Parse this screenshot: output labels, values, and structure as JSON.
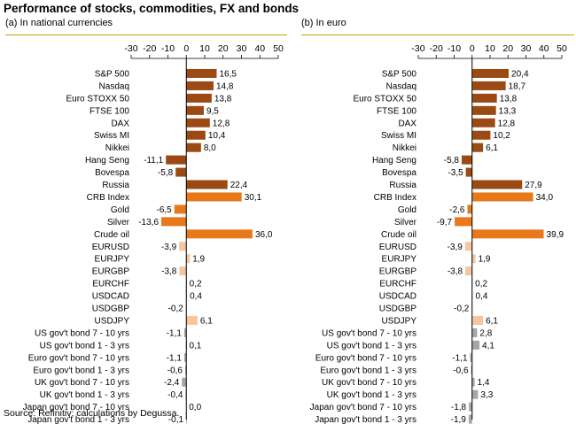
{
  "title": "Performance of stocks, commodities, FX and bonds",
  "source": "Source: Refinitiv; calculations by Degussa.",
  "colors": {
    "stocks": "#9a4a12",
    "commodities": "#e8791b",
    "fx": "#f5c6a0",
    "bonds": "#a6a6a6",
    "rule": "#c8a000",
    "axis": "#000000"
  },
  "chart_data": [
    {
      "type": "bar",
      "orientation": "horizontal",
      "title": "(a) In national currencies",
      "xlim": [
        -30,
        50
      ],
      "xticks": [
        "-30",
        "-20",
        "-10",
        "0",
        "10",
        "20",
        "30",
        "40",
        "50"
      ],
      "categories": [
        "S&P 500",
        "Nasdaq",
        "Euro STOXX 50",
        "FTSE 100",
        "DAX",
        "Swiss MI",
        "Nikkei",
        "Hang Seng",
        "Bovespa",
        "Russia",
        "CRB Index",
        "Gold",
        "Silver",
        "Crude oil",
        "EURUSD",
        "EURJPY",
        "EURGBP",
        "EURCHF",
        "USDCAD",
        "USDGBP",
        "USDJPY",
        "US gov't bond 7 - 10 yrs",
        "US gov't bond 1 - 3 yrs",
        "Euro gov't bond 7 - 10 yrs",
        "Euro gov't bond 1 - 3 yrs",
        "UK gov't bond 7 - 10 yrs",
        "UK gov't bond 1 - 3 yrs",
        "Japan gov't bond 7 - 10 yrs",
        "Japan gov't bond 1 - 3 yrs"
      ],
      "groups": [
        "stocks",
        "stocks",
        "stocks",
        "stocks",
        "stocks",
        "stocks",
        "stocks",
        "stocks",
        "stocks",
        "commodities_dark",
        "commodities",
        "commodities",
        "commodities",
        "commodities",
        "fx",
        "fx",
        "fx",
        "fx",
        "fx",
        "fx",
        "fx",
        "bonds",
        "bonds",
        "bonds",
        "bonds",
        "bonds",
        "bonds",
        "bonds",
        "bonds"
      ],
      "values": [
        16.5,
        14.8,
        13.8,
        9.5,
        12.8,
        10.4,
        8.0,
        -11.1,
        -5.8,
        22.4,
        30.1,
        -6.5,
        -13.6,
        36.0,
        -3.9,
        1.9,
        -3.8,
        0.2,
        0.4,
        -0.2,
        6.1,
        -1.1,
        0.1,
        -1.1,
        -0.6,
        -2.4,
        -0.4,
        0.0,
        -0.1
      ],
      "labels": [
        "16,5",
        "14,8",
        "13,8",
        "9,5",
        "12,8",
        "10,4",
        "8,0",
        "-11,1",
        "-5,8",
        "22,4",
        "30,1",
        "-6,5",
        "-13,6",
        "36,0",
        "-3,9",
        "1,9",
        "-3,8",
        "0,2",
        "0,4",
        "-0,2",
        "6,1",
        "-1,1",
        "0,1",
        "-1,1",
        "-0,6",
        "-2,4",
        "-0,4",
        "0,0",
        "-0,1"
      ]
    },
    {
      "type": "bar",
      "orientation": "horizontal",
      "title": "(b) In euro",
      "xlim": [
        -30,
        50
      ],
      "xticks": [
        "-30",
        "-20",
        "-10",
        "0",
        "10",
        "20",
        "30",
        "40",
        "50"
      ],
      "categories": [
        "S&P 500",
        "Nasdaq",
        "Euro STOXX 50",
        "FTSE 100",
        "DAX",
        "Swiss MI",
        "Nikkei",
        "Hang Seng",
        "Bovespa",
        "Russia",
        "CRB Index",
        "Gold",
        "Silver",
        "Crude oil",
        "EURUSD",
        "EURJPY",
        "EURGBP",
        "EURCHF",
        "USDCAD",
        "USDGBP",
        "USDJPY",
        "US gov't bond 7 - 10 yrs",
        "US gov't bond 1 - 3 yrs",
        "Euro gov't bond 7 - 10 yrs",
        "Euro gov't bond 1 - 3 yrs",
        "UK gov't bond 7 - 10 yrs",
        "UK gov't bond 1 - 3 yrs",
        "Japan gov't bond 7 - 10 yrs",
        "Japan gov't bond 1 - 3 yrs"
      ],
      "groups": [
        "stocks",
        "stocks",
        "stocks",
        "stocks",
        "stocks",
        "stocks",
        "stocks",
        "stocks",
        "stocks",
        "commodities_dark",
        "commodities",
        "commodities",
        "commodities",
        "commodities",
        "fx",
        "fx",
        "fx",
        "fx",
        "fx",
        "fx",
        "fx",
        "bonds",
        "bonds",
        "bonds",
        "bonds",
        "bonds",
        "bonds",
        "bonds",
        "bonds"
      ],
      "values": [
        20.4,
        18.7,
        13.8,
        13.3,
        12.8,
        10.2,
        6.1,
        -5.8,
        -3.5,
        27.9,
        34.0,
        -2.6,
        -9.7,
        39.9,
        -3.9,
        1.9,
        -3.8,
        0.2,
        0.4,
        -0.2,
        6.1,
        2.8,
        4.1,
        -1.1,
        -0.6,
        1.4,
        3.3,
        -1.8,
        -1.9
      ],
      "labels": [
        "20,4",
        "18,7",
        "13,8",
        "13,3",
        "12,8",
        "10,2",
        "6,1",
        "-5,8",
        "-3,5",
        "27,9",
        "34,0",
        "-2,6",
        "-9,7",
        "39,9",
        "-3,9",
        "1,9",
        "-3,8",
        "0,2",
        "0,4",
        "-0,2",
        "6,1",
        "2,8",
        "4,1",
        "-1,1",
        "-0,6",
        "1,4",
        "3,3",
        "-1,8",
        "-1,9"
      ]
    }
  ]
}
